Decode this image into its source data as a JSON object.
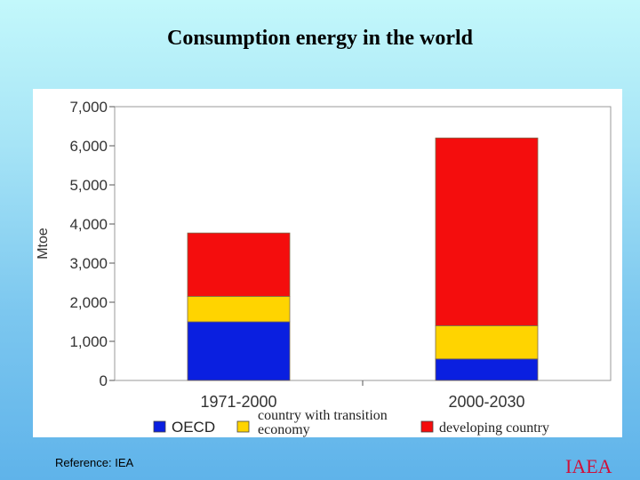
{
  "slide": {
    "title": "Consumption energy in the world",
    "reference": "Reference: IEA",
    "brand": "IAEA"
  },
  "chart_data": {
    "type": "bar",
    "stacked": true,
    "categories": [
      "1971-2000",
      "2000-2030"
    ],
    "ylabel": "Mtoe",
    "ylim": [
      0,
      7000
    ],
    "yticks": [
      0,
      1000,
      2000,
      3000,
      4000,
      5000,
      6000,
      7000
    ],
    "ytick_labels": [
      "0",
      "1,000",
      "2,000",
      "3,000",
      "4,000",
      "5,000",
      "6,000",
      "7,000"
    ],
    "series": [
      {
        "name": "OECD",
        "color": "#0a1fe0",
        "values": [
          1500,
          550
        ]
      },
      {
        "name": "country with transition economy",
        "name_lines": [
          "country with transition",
          "economy"
        ],
        "color": "#ffd400",
        "values": [
          650,
          850
        ]
      },
      {
        "name": "developing country",
        "color": "#f40d0d",
        "values": [
          1620,
          4800
        ]
      }
    ],
    "legend": "bottom",
    "grid": false
  }
}
